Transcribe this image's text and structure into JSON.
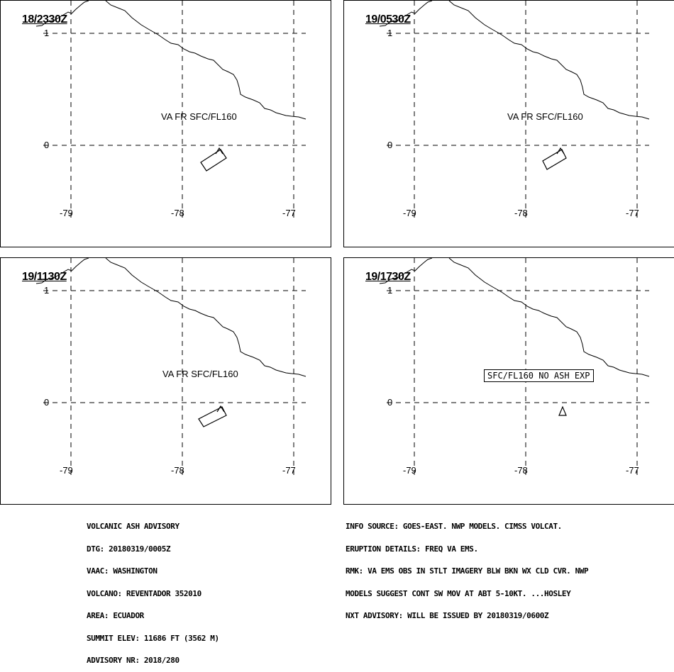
{
  "panels": [
    {
      "time": "18/2330Z",
      "label": "VA FR SFC/FL160",
      "boxed": false
    },
    {
      "time": "19/0530Z",
      "label": "VA FR SFC/FL160",
      "boxed": false
    },
    {
      "time": "19/1130Z",
      "label": "VA FR SFC/FL160",
      "boxed": false
    },
    {
      "time": "19/1730Z",
      "label": "SFC/FL160 NO ASH EXP",
      "boxed": true
    }
  ],
  "lat_ticks": [
    "1",
    "0"
  ],
  "lon_ticks": [
    "-79",
    "-78",
    "-77"
  ],
  "advisory_left": [
    "VOLCANIC ASH ADVISORY",
    "DTG: 20180319/0005Z",
    "VAAC: WASHINGTON",
    "VOLCANO: REVENTADOR 352010",
    "AREA: ECUADOR",
    "SUMMIT ELEV: 11686 FT (3562 M)",
    "ADVISORY NR: 2018/280"
  ],
  "advisory_right": [
    "INFO SOURCE: GOES-EAST. NWP MODELS. CIMSS VOLCAT.",
    "ERUPTION DETAILS: FREQ VA EMS.",
    "RMK: VA EMS OBS IN STLT IMAGERY BLW BKN WX CLD CVR. NWP",
    "MODELS SUGGEST CONT SW MOV AT ABT 5-10KT. ...HOSLEY",
    "NXT ADVISORY: WILL BE ISSUED BY 20180319/0600Z"
  ]
}
